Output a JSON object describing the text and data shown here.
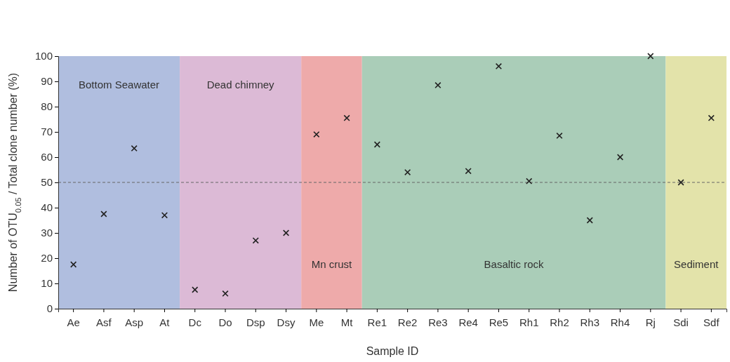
{
  "chart_data": {
    "type": "scatter",
    "xlabel": "Sample ID",
    "ylabel": "Number of OTU$_{0.05}$ / Total clone number (%)",
    "categories": [
      "Ae",
      "Asf",
      "Asp",
      "At",
      "Dc",
      "Do",
      "Dsp",
      "Dsy",
      "Me",
      "Mt",
      "Re1",
      "Re2",
      "Re3",
      "Re4",
      "Re5",
      "Rh1",
      "Rh2",
      "Rh3",
      "Rh4",
      "Rj",
      "Sdi",
      "Sdf"
    ],
    "series": [
      {
        "color": "#222222",
        "values": [
          17.5,
          37.5,
          63.5,
          37,
          7.5,
          6,
          27,
          30,
          69,
          75.5,
          65,
          54,
          88.5,
          54.5,
          96,
          50.5,
          68.5,
          35,
          60,
          100,
          50,
          75.5
        ]
      }
    ],
    "ylim": [
      0,
      100
    ],
    "yticks": [
      0,
      10,
      20,
      30,
      40,
      50,
      60,
      70,
      80,
      90,
      100
    ],
    "marker": "cross",
    "ref_lines": [
      {
        "axis": "y",
        "value": 50,
        "color": "#666666",
        "line_style": "dashed"
      }
    ],
    "bands": [
      {
        "axis": "x",
        "from": "Ae",
        "to": "At",
        "label": "Bottom Seawater",
        "color": "#b0bedf"
      },
      {
        "axis": "x",
        "from": "Dc",
        "to": "Dsy",
        "label": "Dead chimney",
        "color": "#dcbad6"
      },
      {
        "axis": "x",
        "from": "Me",
        "to": "Mt",
        "label": "Mn crust",
        "color": "#eeaaaa"
      },
      {
        "axis": "x",
        "from": "Re1",
        "to": "Rj",
        "label": "Basaltic rock",
        "color": "#aacdb8"
      },
      {
        "axis": "x",
        "from": "Sdi",
        "to": "Sdf",
        "label": "Sediment",
        "color": "#e3e3aa"
      }
    ]
  }
}
